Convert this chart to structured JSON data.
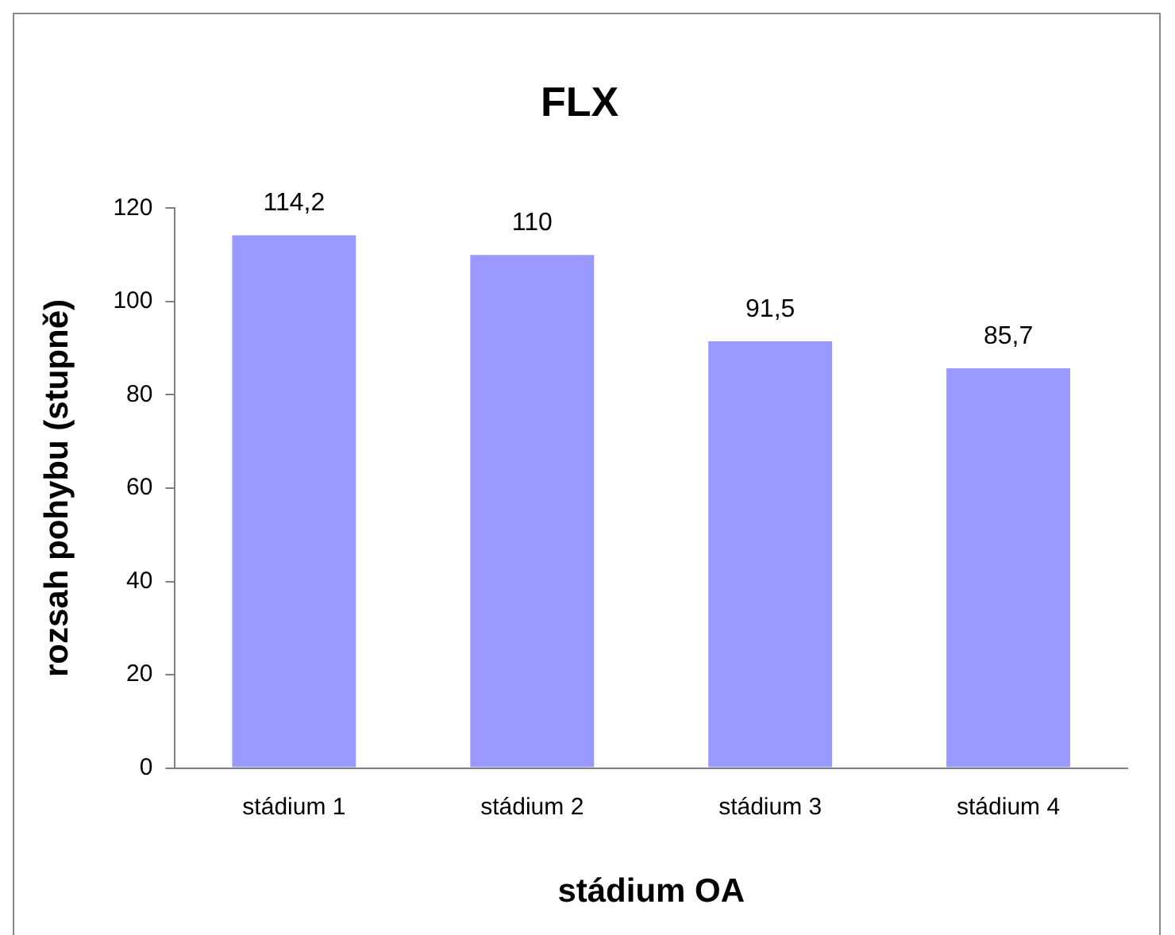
{
  "chart_data": {
    "type": "bar",
    "title": "FLX",
    "xlabel": "stádium OA",
    "ylabel": "rozsah pohybu (stupně)",
    "categories": [
      "stádium 1",
      "stádium 2",
      "stádium 3",
      "stádium 4"
    ],
    "values": [
      114.2,
      110,
      91.5,
      85.7
    ],
    "value_labels": [
      "114,2",
      "110",
      "91,5",
      "85,7"
    ],
    "color": "#9999ff",
    "ylim": [
      0,
      120
    ],
    "yticks": [
      0,
      20,
      40,
      60,
      80,
      100,
      120
    ],
    "grid": false,
    "legend": false
  }
}
